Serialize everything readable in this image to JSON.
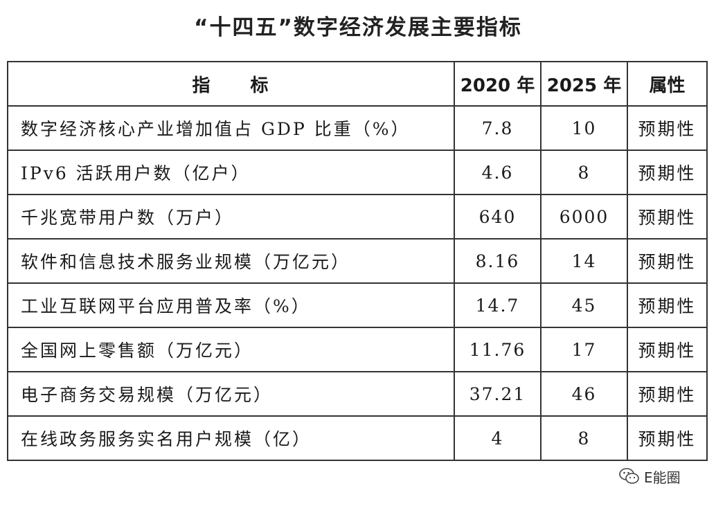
{
  "title": "“十四五”数字经济发展主要指标",
  "table": {
    "headers": {
      "indicator": "指　　标",
      "year_2020": "2020 年",
      "year_2025": "2025 年",
      "attribute": "属性"
    },
    "rows": [
      {
        "indicator": "数字经济核心产业增加值占 GDP 比重（%）",
        "v2020": "7.8",
        "v2025": "10",
        "attribute": "预期性"
      },
      {
        "indicator": "IPv6 活跃用户数（亿户）",
        "v2020": "4.6",
        "v2025": "8",
        "attribute": "预期性"
      },
      {
        "indicator": "千兆宽带用户数（万户）",
        "v2020": "640",
        "v2025": "6000",
        "attribute": "预期性"
      },
      {
        "indicator": "软件和信息技术服务业规模（万亿元）",
        "v2020": "8.16",
        "v2025": "14",
        "attribute": "预期性"
      },
      {
        "indicator": "工业互联网平台应用普及率（%）",
        "v2020": "14.7",
        "v2025": "45",
        "attribute": "预期性"
      },
      {
        "indicator": "全国网上零售额（万亿元）",
        "v2020": "11.76",
        "v2025": "17",
        "attribute": "预期性"
      },
      {
        "indicator": "电子商务交易规模（万亿元）",
        "v2020": "37.21",
        "v2025": "46",
        "attribute": "预期性"
      },
      {
        "indicator": "在线政务服务实名用户规模（亿）",
        "v2020": "4",
        "v2025": "8",
        "attribute": "预期性"
      }
    ]
  },
  "watermark": {
    "icon": "wechat-icon",
    "text": "E能圈"
  }
}
